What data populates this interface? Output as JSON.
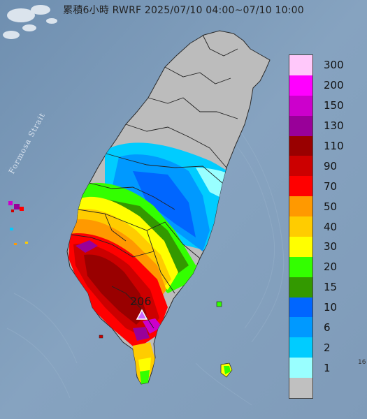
{
  "title": "累積6小時 RWRF 2025/07/10 04:00~07/10 10:00",
  "strait_label": "Formosa Strait",
  "max_marker": {
    "value": "206",
    "icon": "triangle-marker-icon"
  },
  "edge_label": "16",
  "legend": {
    "items": [
      {
        "label": "300",
        "color": "#ffc8fa"
      },
      {
        "label": "200",
        "color": "#ff00ff"
      },
      {
        "label": "150",
        "color": "#cc00cc"
      },
      {
        "label": "130",
        "color": "#990099"
      },
      {
        "label": "110",
        "color": "#990000"
      },
      {
        "label": "90",
        "color": "#cc0000"
      },
      {
        "label": "70",
        "color": "#ff0000"
      },
      {
        "label": "50",
        "color": "#ff9900"
      },
      {
        "label": "40",
        "color": "#ffcc00"
      },
      {
        "label": "30",
        "color": "#ffff00"
      },
      {
        "label": "20",
        "color": "#33ff00"
      },
      {
        "label": "15",
        "color": "#339900"
      },
      {
        "label": "10",
        "color": "#0066ff"
      },
      {
        "label": "6",
        "color": "#0099ff"
      },
      {
        "label": "2",
        "color": "#00ccff"
      },
      {
        "label": "1",
        "color": "#99ffff"
      },
      {
        "label": "",
        "color": "#c0c0c0"
      }
    ]
  }
}
